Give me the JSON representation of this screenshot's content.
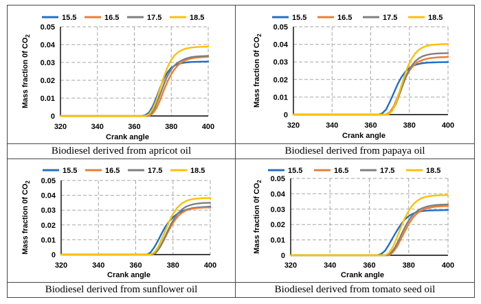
{
  "chart_data": [
    {
      "type": "line",
      "caption": "Biodiesel derived from apricot oil",
      "xlabel": "Crank angle",
      "ylabel": "Mass  fraction 0f CO",
      "ylabel_sub": "2",
      "xlim": [
        320,
        400
      ],
      "ylim": [
        0,
        0.05
      ],
      "xticks": [
        "320",
        "340",
        "360",
        "380",
        "400"
      ],
      "yticks": [
        "0",
        "0.01",
        "0.02",
        "0.03",
        "0.04",
        "0.05"
      ],
      "legend_position": "top",
      "series": [
        {
          "name": "15.5",
          "color": "#1f6fc5",
          "x": [
            320,
            364,
            366,
            368,
            370,
            372,
            374,
            376,
            378,
            380,
            382,
            384,
            386,
            388,
            390,
            392,
            395,
            400
          ],
          "y": [
            0,
            0,
            0.0005,
            0.002,
            0.0055,
            0.0105,
            0.016,
            0.021,
            0.0245,
            0.027,
            0.0284,
            0.0292,
            0.0297,
            0.03,
            0.0302,
            0.0303,
            0.0304,
            0.0305
          ]
        },
        {
          "name": "16.5",
          "color": "#ed7d31",
          "x": [
            320,
            368,
            370,
            372,
            374,
            376,
            378,
            380,
            382,
            384,
            386,
            388,
            390,
            392,
            395,
            400
          ],
          "y": [
            0,
            0,
            0.0015,
            0.0045,
            0.009,
            0.0145,
            0.0195,
            0.0235,
            0.0265,
            0.0288,
            0.0303,
            0.0313,
            0.032,
            0.0325,
            0.0329,
            0.0332
          ]
        },
        {
          "name": "17.5",
          "color": "#7f7f7f",
          "x": [
            320,
            367,
            369,
            371,
            373,
            375,
            377,
            379,
            381,
            383,
            385,
            387,
            389,
            391,
            394,
            400
          ],
          "y": [
            0,
            0,
            0.0015,
            0.0045,
            0.0095,
            0.015,
            0.0205,
            0.0245,
            0.0275,
            0.0295,
            0.0308,
            0.0318,
            0.0325,
            0.033,
            0.0334,
            0.0337
          ]
        },
        {
          "name": "18.5",
          "color": "#ffc000",
          "x": [
            320,
            366,
            368,
            370,
            372,
            374,
            376,
            378,
            380,
            382,
            384,
            386,
            388,
            390,
            392,
            395,
            400
          ],
          "y": [
            0,
            0,
            0.001,
            0.004,
            0.009,
            0.0155,
            0.022,
            0.0275,
            0.0315,
            0.0342,
            0.036,
            0.0371,
            0.0378,
            0.0382,
            0.0385,
            0.0387,
            0.0389
          ]
        }
      ]
    },
    {
      "type": "line",
      "caption": "Biodiesel derived from papaya oil",
      "xlabel": "Crank angle",
      "ylabel": "Mass  fraction 0f CO",
      "ylabel_sub": "2",
      "xlim": [
        320,
        400
      ],
      "ylim": [
        0,
        0.05
      ],
      "xticks": [
        "320",
        "340",
        "360",
        "380",
        "400"
      ],
      "yticks": [
        "0",
        "0.01",
        "0.02",
        "0.03",
        "0.04",
        "0.05"
      ],
      "legend_position": "top",
      "series": [
        {
          "name": "15.5",
          "color": "#1f6fc5",
          "x": [
            320,
            364,
            366,
            368,
            370,
            372,
            374,
            376,
            378,
            380,
            382,
            384,
            386,
            388,
            390,
            392,
            395,
            400
          ],
          "y": [
            0,
            0,
            0.0008,
            0.003,
            0.0075,
            0.0125,
            0.0175,
            0.0215,
            0.0245,
            0.0265,
            0.0278,
            0.0286,
            0.0291,
            0.0294,
            0.0296,
            0.0297,
            0.0298,
            0.0299
          ]
        },
        {
          "name": "16.5",
          "color": "#ed7d31",
          "x": [
            320,
            368,
            370,
            372,
            374,
            376,
            378,
            380,
            382,
            384,
            386,
            388,
            390,
            392,
            395,
            400
          ],
          "y": [
            0,
            0,
            0.0015,
            0.005,
            0.0105,
            0.016,
            0.021,
            0.025,
            0.0278,
            0.0296,
            0.0308,
            0.0315,
            0.032,
            0.0323,
            0.0326,
            0.0328
          ]
        },
        {
          "name": "17.5",
          "color": "#7f7f7f",
          "x": [
            320,
            369,
            371,
            373,
            375,
            377,
            379,
            381,
            383,
            385,
            387,
            389,
            391,
            393,
            396,
            400
          ],
          "y": [
            0,
            0,
            0.002,
            0.006,
            0.012,
            0.018,
            0.0235,
            0.0275,
            0.0303,
            0.0321,
            0.0333,
            0.034,
            0.0344,
            0.0347,
            0.0349,
            0.035
          ]
        },
        {
          "name": "18.5",
          "color": "#ffc000",
          "x": [
            320,
            369,
            371,
            373,
            375,
            377,
            379,
            381,
            383,
            385,
            387,
            389,
            391,
            393,
            396,
            400
          ],
          "y": [
            0,
            0,
            0.002,
            0.0065,
            0.0135,
            0.0205,
            0.0268,
            0.0315,
            0.0348,
            0.037,
            0.0383,
            0.0391,
            0.0396,
            0.0398,
            0.04,
            0.0402
          ]
        }
      ]
    },
    {
      "type": "line",
      "caption": "Biodiesel derived from sunflower oil",
      "xlabel": "Crank angle",
      "ylabel": "Mass  fraction 0f CO",
      "ylabel_sub": "2",
      "xlim": [
        320,
        400
      ],
      "ylim": [
        0,
        0.05
      ],
      "xticks": [
        "320",
        "340",
        "360",
        "380",
        "400"
      ],
      "yticks": [
        "0",
        "0.01",
        "0.02",
        "0.03",
        "0.04",
        "0.05"
      ],
      "legend_position": "top",
      "series": [
        {
          "name": "15.5",
          "color": "#1f6fc5",
          "x": [
            320,
            366,
            368,
            370,
            372,
            374,
            376,
            378,
            380,
            382,
            384,
            386,
            388,
            390,
            392,
            395,
            400
          ],
          "y": [
            0,
            0,
            0.0015,
            0.005,
            0.0095,
            0.0145,
            0.019,
            0.0225,
            0.0252,
            0.0272,
            0.0287,
            0.0298,
            0.0306,
            0.0312,
            0.0316,
            0.032,
            0.0323
          ]
        },
        {
          "name": "16.5",
          "color": "#ed7d31",
          "x": [
            320,
            369,
            371,
            373,
            375,
            377,
            379,
            381,
            383,
            385,
            387,
            389,
            391,
            393,
            396,
            400
          ],
          "y": [
            0,
            0,
            0.0015,
            0.005,
            0.0095,
            0.0145,
            0.0192,
            0.0233,
            0.0263,
            0.0284,
            0.0298,
            0.0306,
            0.0311,
            0.0314,
            0.0317,
            0.0318
          ]
        },
        {
          "name": "17.5",
          "color": "#7f7f7f",
          "x": [
            320,
            369,
            371,
            373,
            375,
            377,
            379,
            381,
            383,
            385,
            387,
            389,
            391,
            393,
            396,
            400
          ],
          "y": [
            0,
            0,
            0.0015,
            0.005,
            0.01,
            0.0155,
            0.0207,
            0.025,
            0.0283,
            0.0307,
            0.0323,
            0.0333,
            0.034,
            0.0344,
            0.0348,
            0.035
          ]
        },
        {
          "name": "18.5",
          "color": "#ffc000",
          "x": [
            320,
            368,
            370,
            372,
            374,
            376,
            378,
            380,
            382,
            384,
            386,
            388,
            390,
            392,
            395,
            400
          ],
          "y": [
            0,
            0,
            0.0015,
            0.005,
            0.0105,
            0.0165,
            0.0225,
            0.0275,
            0.0312,
            0.0338,
            0.0355,
            0.0366,
            0.0373,
            0.0377,
            0.038,
            0.0382
          ]
        }
      ]
    },
    {
      "type": "line",
      "caption": "Biodiesel derived from tomato seed oil",
      "xlabel": "Crank angle",
      "ylabel": "Mass  fraction 0f CO",
      "ylabel_sub": "2",
      "xlim": [
        320,
        400
      ],
      "ylim": [
        0,
        0.05
      ],
      "xticks": [
        "320",
        "340",
        "360",
        "380",
        "400"
      ],
      "yticks": [
        "0",
        "0.01",
        "0.02",
        "0.03",
        "0.04",
        "0.05"
      ],
      "legend_position": "top",
      "series": [
        {
          "name": "15.5",
          "color": "#1f6fc5",
          "x": [
            320,
            364,
            366,
            368,
            370,
            372,
            374,
            376,
            378,
            380,
            382,
            384,
            386,
            388,
            390,
            392,
            395,
            400
          ],
          "y": [
            0,
            0,
            0.0008,
            0.003,
            0.007,
            0.0115,
            0.016,
            0.02,
            0.0232,
            0.0255,
            0.027,
            0.028,
            0.0286,
            0.0289,
            0.0291,
            0.0292,
            0.0293,
            0.0294
          ]
        },
        {
          "name": "16.5",
          "color": "#ed7d31",
          "x": [
            320,
            370,
            372,
            374,
            376,
            378,
            380,
            382,
            384,
            386,
            388,
            390,
            392,
            394,
            397,
            400
          ],
          "y": [
            0,
            0,
            0.002,
            0.0055,
            0.0105,
            0.0155,
            0.0203,
            0.0242,
            0.027,
            0.0288,
            0.03,
            0.0308,
            0.0313,
            0.0316,
            0.0319,
            0.032
          ]
        },
        {
          "name": "17.5",
          "color": "#7f7f7f",
          "x": [
            320,
            369,
            371,
            373,
            375,
            377,
            379,
            381,
            383,
            385,
            387,
            389,
            391,
            393,
            396,
            400
          ],
          "y": [
            0,
            0,
            0.0015,
            0.005,
            0.01,
            0.0155,
            0.0205,
            0.0245,
            0.0274,
            0.0294,
            0.0307,
            0.0316,
            0.0322,
            0.0326,
            0.0329,
            0.0331
          ]
        },
        {
          "name": "18.5",
          "color": "#ffc000",
          "x": [
            320,
            368,
            370,
            372,
            374,
            376,
            378,
            380,
            382,
            384,
            386,
            388,
            390,
            392,
            395,
            400
          ],
          "y": [
            0,
            0,
            0.0015,
            0.0055,
            0.0115,
            0.018,
            0.024,
            0.029,
            0.0327,
            0.0352,
            0.0368,
            0.0378,
            0.0384,
            0.0387,
            0.039,
            0.0391
          ]
        }
      ]
    }
  ]
}
